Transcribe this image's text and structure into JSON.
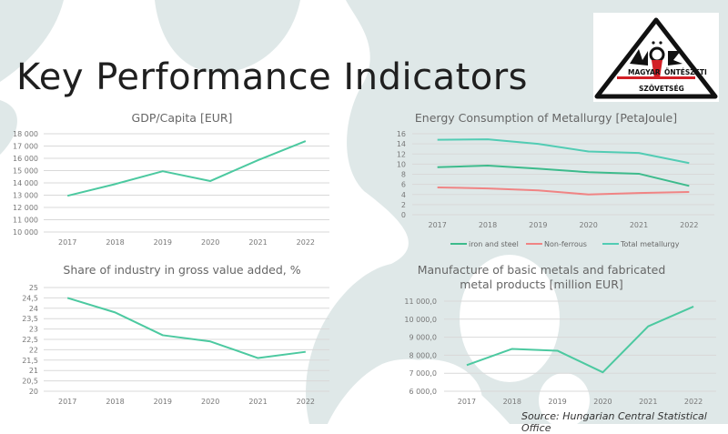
{
  "page": {
    "title": "Key Performance Indicators",
    "source": "Source: Hungarian Central Statistical Office",
    "logo": {
      "text_lines": [
        "MAGYAR",
        "ÖNTÉSZETI",
        "SZÖVETSÉG"
      ],
      "monogram": "MÖSZ"
    }
  },
  "colors": {
    "background_blob": "#dfe8e8",
    "line_main": "#4cc9a0",
    "iron": "#3dbb8c",
    "nonferrous": "#f08484",
    "total": "#52ccb4",
    "grid": "#d9d9d9",
    "tick": "#777777"
  },
  "chart_data": [
    {
      "type": "line",
      "title": "GDP/Capita [EUR]",
      "categories": [
        "2017",
        "2018",
        "2019",
        "2020",
        "2021",
        "2022"
      ],
      "yticks": [
        "10 000",
        "11 000",
        "12 000",
        "13 000",
        "14 000",
        "15 000",
        "16 000",
        "17 000",
        "18 000"
      ],
      "ylim": [
        10000,
        18000
      ],
      "grid": true,
      "series": [
        {
          "values": [
            12950,
            13900,
            14950,
            14150,
            15850,
            17400
          ],
          "color": "#4cc9a0"
        }
      ]
    },
    {
      "type": "line",
      "title": "Energy Consumption of Metallurgy [PetaJoule]",
      "categories": [
        "2017",
        "2018",
        "2019",
        "2020",
        "2021",
        "2022"
      ],
      "yticks": [
        "0",
        "2",
        "4",
        "6",
        "8",
        "10",
        "12",
        "14",
        "16"
      ],
      "ylim": [
        0,
        16
      ],
      "grid": true,
      "legend": "bottom",
      "series": [
        {
          "name": "iron and steel",
          "values": [
            9.4,
            9.7,
            9.1,
            8.4,
            8.1,
            5.7
          ],
          "color": "#3dbb8c"
        },
        {
          "name": "Non-ferrous",
          "values": [
            5.4,
            5.2,
            4.8,
            4.0,
            4.3,
            4.5
          ],
          "color": "#f08484"
        },
        {
          "name": "Total metallurgy",
          "values": [
            14.8,
            14.9,
            14.0,
            12.5,
            12.2,
            10.2
          ],
          "color": "#52ccb4"
        }
      ]
    },
    {
      "type": "line",
      "title": "Share of industry in gross value added, %",
      "categories": [
        "2017",
        "2018",
        "2019",
        "2020",
        "2021",
        "2022"
      ],
      "yticks": [
        "20",
        "20,5",
        "21",
        "21,5",
        "22",
        "22,5",
        "23",
        "23,5",
        "24",
        "24,5",
        "25"
      ],
      "ylim": [
        20,
        25
      ],
      "grid": true,
      "series": [
        {
          "values": [
            24.5,
            23.8,
            22.7,
            22.4,
            21.6,
            21.9
          ],
          "color": "#4cc9a0"
        }
      ]
    },
    {
      "type": "line",
      "title": "Manufacture of basic metals and fabricated metal products [million EUR]",
      "categories": [
        "2017",
        "2018",
        "2019",
        "2020",
        "2021",
        "2022"
      ],
      "yticks": [
        "6 000,0",
        "7 000,0",
        "8 000,0",
        "9 000,0",
        "10 000,0",
        "11 000,0"
      ],
      "ylim": [
        6000,
        11000
      ],
      "grid": true,
      "series": [
        {
          "values": [
            7450,
            8350,
            8250,
            7050,
            9600,
            10700
          ],
          "color": "#4cc9a0"
        }
      ]
    }
  ]
}
